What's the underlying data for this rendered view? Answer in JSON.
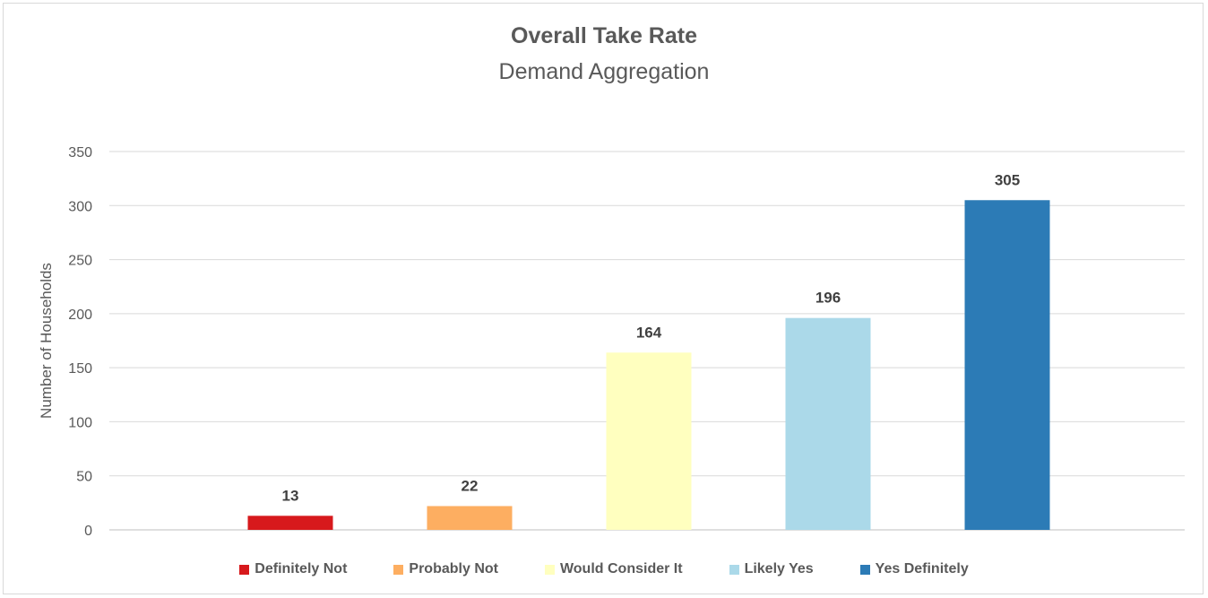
{
  "chart_data": {
    "type": "bar",
    "title": "Overall Take Rate",
    "subtitle": "Demand Aggregation",
    "xlabel": "",
    "ylabel": "Number of Households",
    "ylim": [
      0,
      350
    ],
    "yticks": [
      "0",
      "50",
      "100",
      "150",
      "200",
      "250",
      "300",
      "350"
    ],
    "grid": true,
    "legend_position": "bottom",
    "categories": [
      "Definitely Not",
      "Probably Not",
      "Would Consider It",
      "Likely Yes",
      "Yes Definitely"
    ],
    "values": [
      13,
      22,
      164,
      196,
      305
    ],
    "data_labels": [
      "13",
      "22",
      "164",
      "196",
      "305"
    ],
    "colors": [
      "#d7191c",
      "#fdae61",
      "#ffffbf",
      "#abd9e9",
      "#2c7bb6"
    ]
  }
}
